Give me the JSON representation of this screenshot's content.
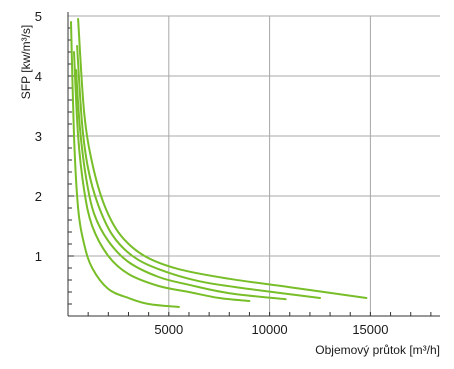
{
  "chart_data": {
    "type": "line",
    "xlabel": "Objemový průtok [m³/h]",
    "ylabel": "SFP [kw/m³/s]",
    "xlim": [
      0,
      18000
    ],
    "ylim": [
      0,
      5
    ],
    "x_ticks": [
      5000,
      10000,
      15000
    ],
    "y_ticks": [
      1,
      2,
      3,
      4,
      5
    ],
    "x_tick_labels": [
      "5000",
      "10000",
      "15000"
    ],
    "y_tick_labels": [
      "1",
      "2",
      "3",
      "4",
      "5"
    ],
    "grid": true,
    "line_color": "#78be28",
    "series": [
      {
        "x": [
          150,
          300,
          500,
          800,
          1200,
          2000,
          3000,
          4000,
          5500
        ],
        "y": [
          4.9,
          3.0,
          1.8,
          1.2,
          0.8,
          0.45,
          0.3,
          0.2,
          0.15
        ]
      },
      {
        "x": [
          300,
          500,
          800,
          1200,
          2000,
          3000,
          4500,
          6000,
          7500,
          9000
        ],
        "y": [
          4.4,
          3.0,
          2.1,
          1.5,
          1.0,
          0.7,
          0.5,
          0.4,
          0.3,
          0.25
        ]
      },
      {
        "x": [
          400,
          600,
          900,
          1300,
          2000,
          3000,
          4500,
          6000,
          8000,
          10800
        ],
        "y": [
          4.1,
          3.1,
          2.3,
          1.7,
          1.25,
          0.9,
          0.65,
          0.52,
          0.38,
          0.28
        ]
      },
      {
        "x": [
          450,
          700,
          1000,
          1500,
          2200,
          3200,
          4500,
          6500,
          9000,
          12500
        ],
        "y": [
          4.5,
          3.2,
          2.45,
          1.85,
          1.35,
          1.0,
          0.78,
          0.58,
          0.45,
          0.3
        ]
      },
      {
        "x": [
          500,
          800,
          1200,
          1800,
          2600,
          3800,
          5500,
          8000,
          11000,
          14800
        ],
        "y": [
          4.95,
          3.4,
          2.55,
          1.85,
          1.35,
          1.0,
          0.78,
          0.62,
          0.48,
          0.3
        ]
      }
    ]
  }
}
